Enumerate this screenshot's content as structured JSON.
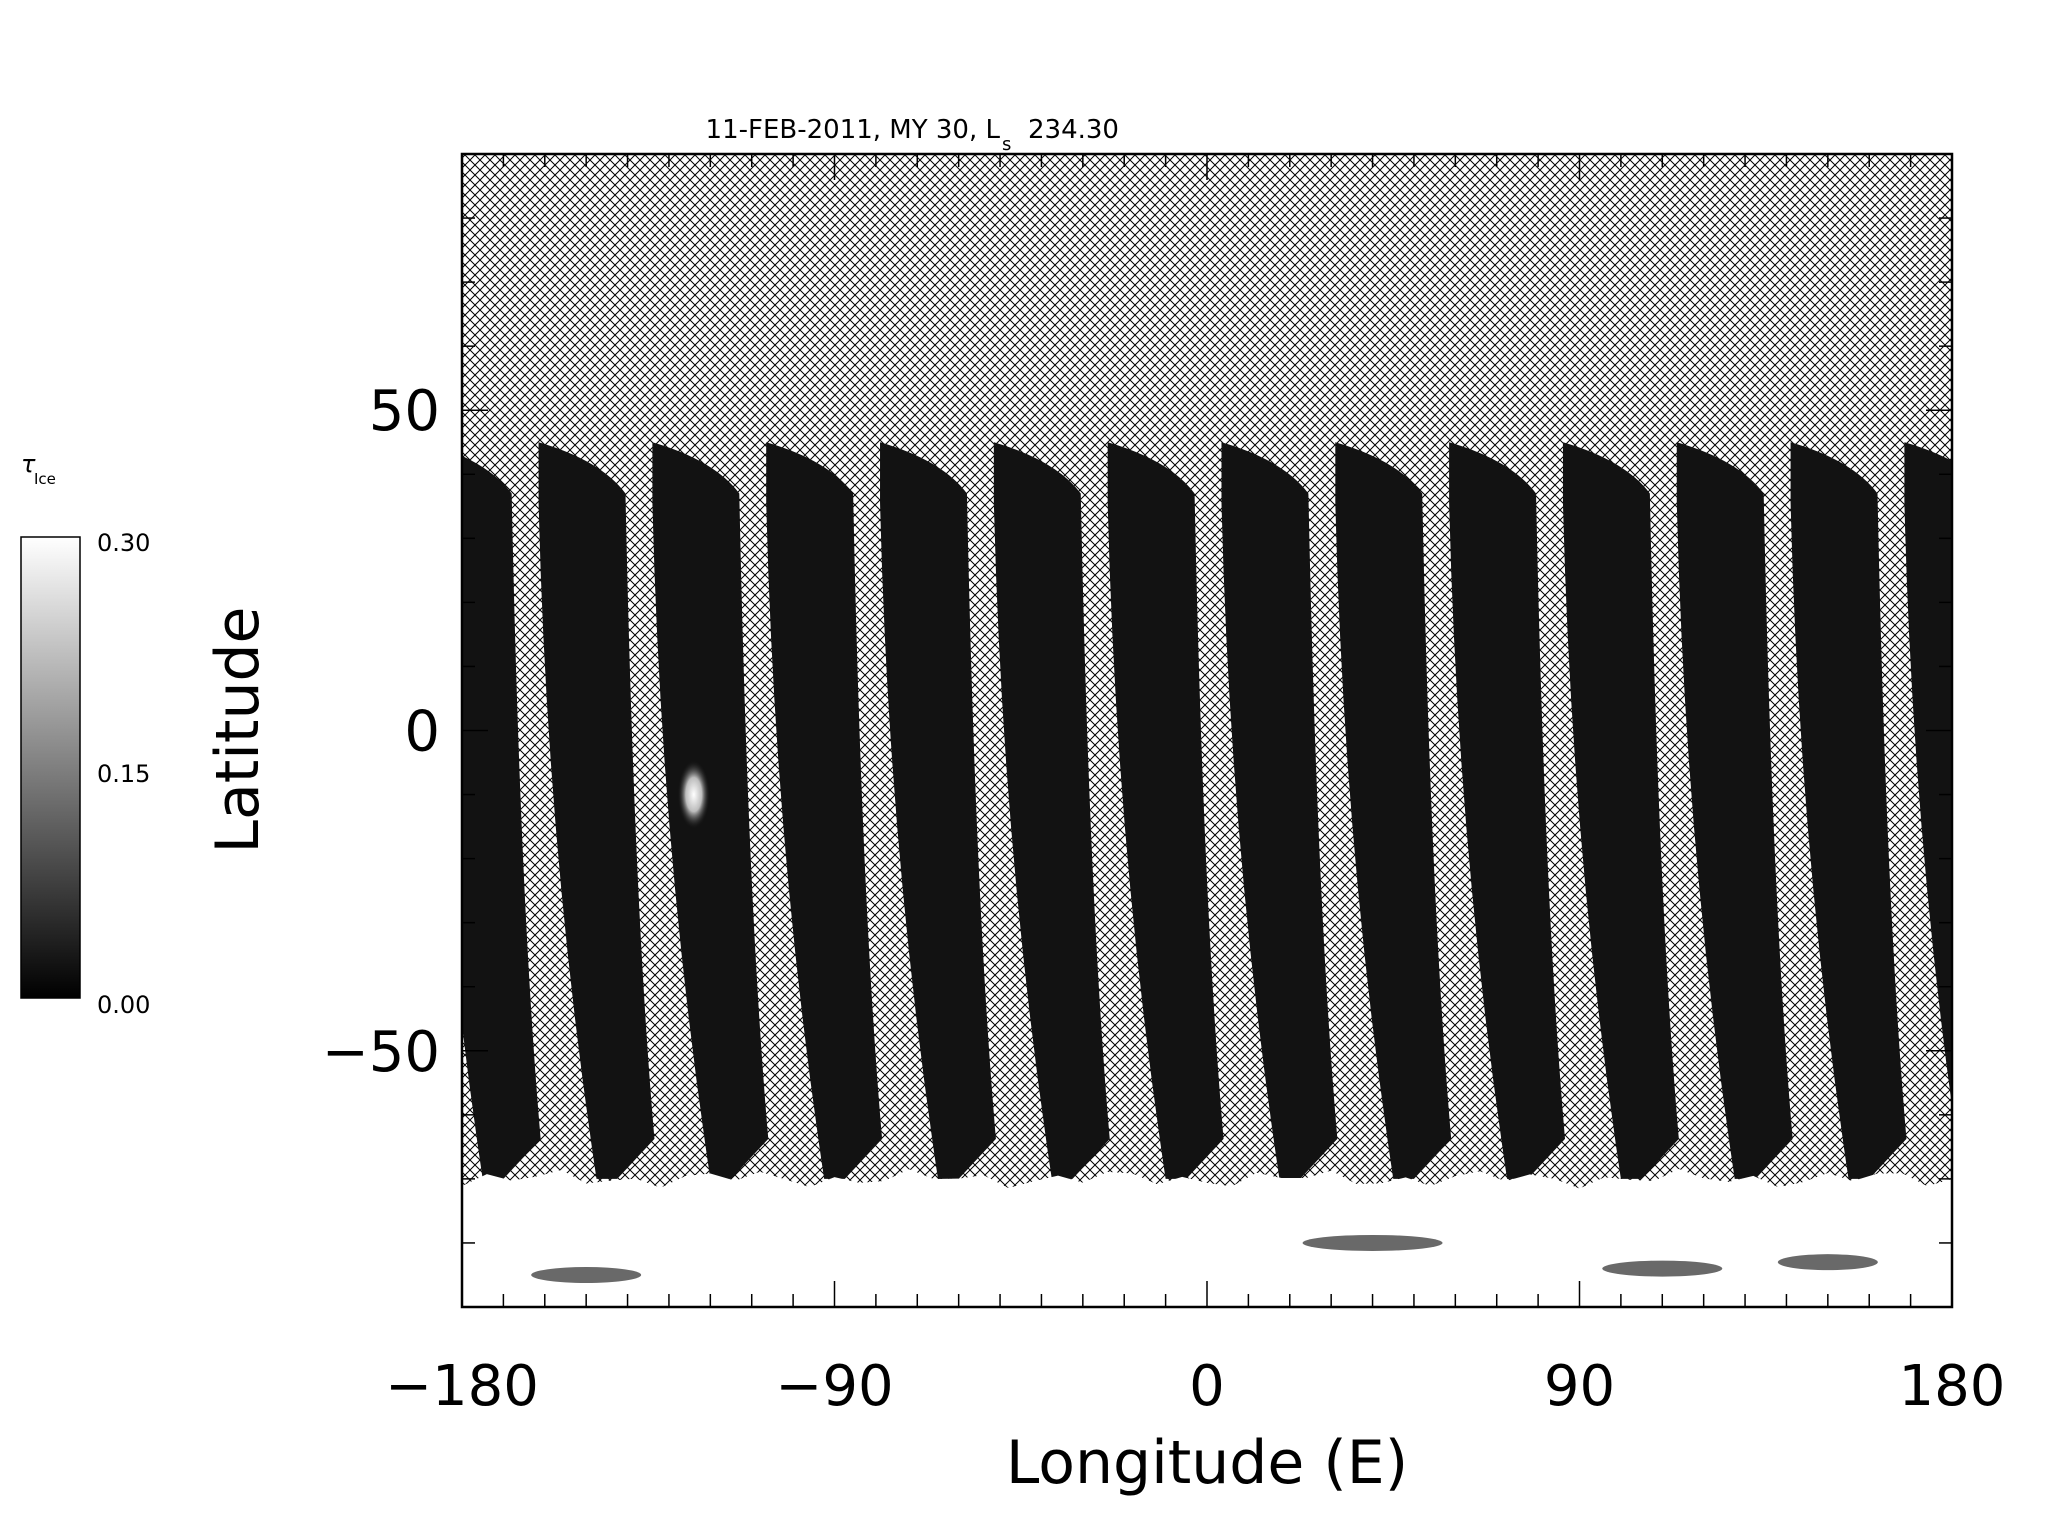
{
  "chart_data": {
    "type": "heatmap",
    "title": "11-FEB-2011, MY 30,  L",
    "title_subscript": "s",
    "title_value": "234.30",
    "xlabel": "Longitude (E)",
    "ylabel": "Latitude",
    "xlim": [
      -180,
      180
    ],
    "ylim": [
      -90,
      90
    ],
    "x_ticks": [
      -180,
      -90,
      0,
      90,
      180
    ],
    "x_tick_labels": [
      "−180",
      "−90",
      "0",
      "90",
      "180"
    ],
    "y_ticks": [
      -50,
      0,
      50
    ],
    "y_tick_labels": [
      "−50",
      "0",
      "50"
    ],
    "x_minor_step": 10,
    "y_minor_step": 10,
    "colorbar": {
      "label": "τ",
      "label_subscript": "Ice",
      "min": 0.0,
      "max": 0.3,
      "ticks": [
        "0.30",
        "0.15",
        "0.00"
      ],
      "colormap": "grayscale"
    },
    "no_data_fill": "crosshatch",
    "swaths": {
      "count": 14,
      "first_center_lon": -178,
      "spacing_deg": 27.5,
      "north_lat": 45,
      "south_lat": -70,
      "typical_value": 0.01
    },
    "south_polar_region": {
      "lat_from": -90,
      "lat_to": -70,
      "value": 0.3
    },
    "bright_spot": {
      "lon": -124,
      "lat": -10,
      "value": 0.28
    },
    "colors": {
      "high": "#f8f8f8",
      "low": "#0a0a0a",
      "hatch": "#000000"
    }
  }
}
